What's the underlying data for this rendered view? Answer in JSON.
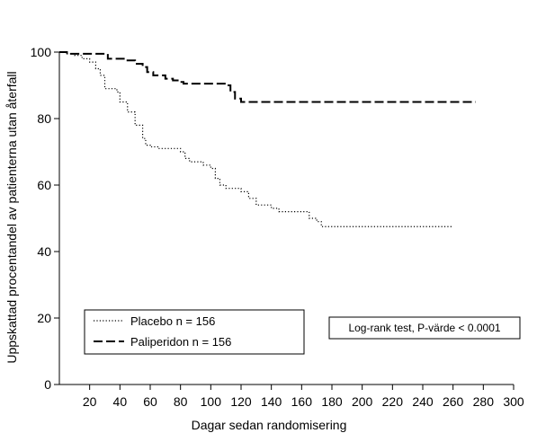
{
  "chart_data": {
    "type": "line",
    "xlabel": "Dagar sedan randomisering",
    "ylabel": "Uppskattad procentandel av patienterna utan återfall",
    "xlim": [
      0,
      300
    ],
    "ylim": [
      0,
      100
    ],
    "xticks": [
      20,
      40,
      60,
      80,
      100,
      120,
      140,
      160,
      180,
      200,
      220,
      240,
      260,
      280,
      300
    ],
    "yticks": [
      0,
      20,
      40,
      60,
      80,
      100
    ],
    "grid": false,
    "legend_placement": "bottom-left",
    "annotation": "Log-rank  test,  P-värde  < 0.0001",
    "series": [
      {
        "name": "Placebo n = 156",
        "style": "dotted",
        "color": "#000000",
        "points": [
          [
            0,
            100
          ],
          [
            5,
            99.5
          ],
          [
            10,
            99
          ],
          [
            15,
            98
          ],
          [
            20,
            97
          ],
          [
            24,
            95
          ],
          [
            27,
            93
          ],
          [
            30,
            89
          ],
          [
            38,
            88
          ],
          [
            40,
            85
          ],
          [
            45,
            82
          ],
          [
            50,
            78
          ],
          [
            55,
            74
          ],
          [
            57,
            72
          ],
          [
            60,
            71.5
          ],
          [
            65,
            71
          ],
          [
            80,
            70
          ],
          [
            83,
            68
          ],
          [
            86,
            67
          ],
          [
            95,
            66
          ],
          [
            100,
            65
          ],
          [
            103,
            62
          ],
          [
            106,
            60
          ],
          [
            110,
            59
          ],
          [
            120,
            58
          ],
          [
            125,
            56
          ],
          [
            130,
            54
          ],
          [
            140,
            53
          ],
          [
            145,
            52
          ],
          [
            160,
            52
          ],
          [
            165,
            50
          ],
          [
            170,
            49
          ],
          [
            173,
            47.5
          ],
          [
            260,
            47.5
          ]
        ]
      },
      {
        "name": "Paliperidon n = 156",
        "style": "dashed",
        "color": "#000000",
        "points": [
          [
            0,
            100
          ],
          [
            5,
            99.5
          ],
          [
            30,
            99.5
          ],
          [
            32,
            98
          ],
          [
            45,
            97.5
          ],
          [
            50,
            96.5
          ],
          [
            55,
            95.5
          ],
          [
            58,
            94
          ],
          [
            62,
            93
          ],
          [
            70,
            92
          ],
          [
            75,
            91.5
          ],
          [
            80,
            91
          ],
          [
            82,
            90.5
          ],
          [
            110,
            90
          ],
          [
            113,
            88
          ],
          [
            116,
            86
          ],
          [
            120,
            85
          ],
          [
            275,
            85
          ]
        ]
      }
    ]
  }
}
